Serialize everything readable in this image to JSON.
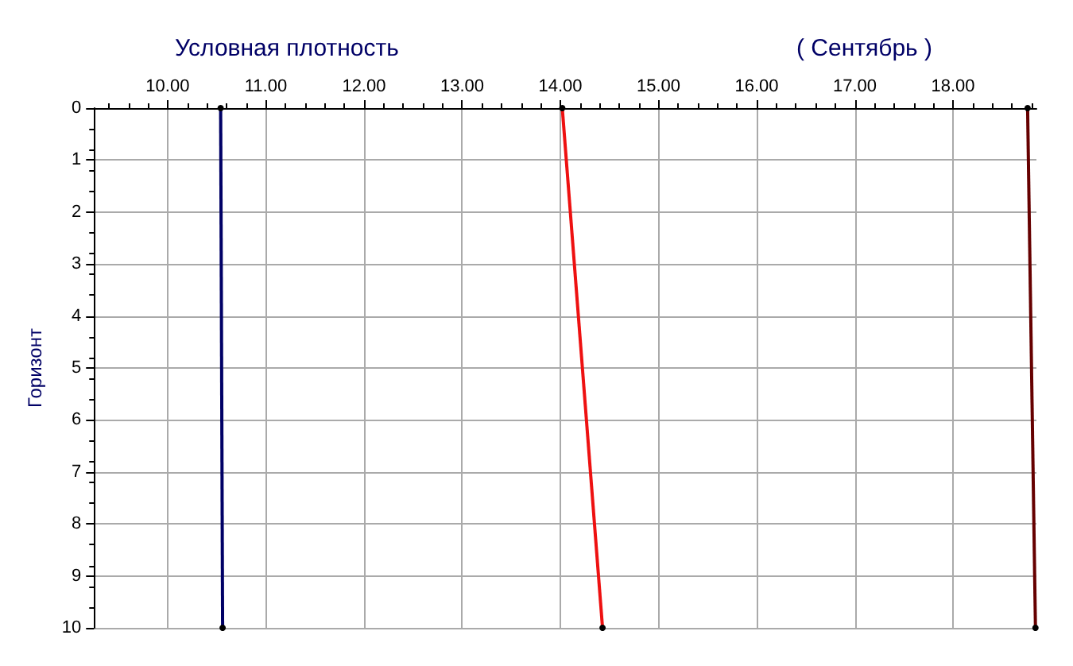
{
  "chart_data": {
    "type": "line",
    "title": "Условная плотность",
    "subtitle": "( Сентябрь )",
    "ylabel": "Горизонт",
    "series": [
      {
        "color": "#000066",
        "x": [
          10.54,
          10.56
        ],
        "values": [
          0,
          10
        ]
      },
      {
        "color": "#ee1111",
        "x": [
          14.02,
          14.43
        ],
        "values": [
          0,
          10
        ]
      },
      {
        "color": "#660000",
        "x": [
          18.76,
          18.84
        ],
        "values": [
          0,
          10
        ]
      }
    ],
    "xlim": [
      9.25,
      18.85
    ],
    "xticks": [
      {
        "value": 10,
        "label": "10.00"
      },
      {
        "value": 11,
        "label": "11.00"
      },
      {
        "value": 12,
        "label": "12.00"
      },
      {
        "value": 13,
        "label": "13.00"
      },
      {
        "value": 14,
        "label": "14.00"
      },
      {
        "value": 15,
        "label": "15.00"
      },
      {
        "value": 16,
        "label": "16.00"
      },
      {
        "value": 17,
        "label": "17.00"
      },
      {
        "value": 18,
        "label": "18.00"
      }
    ],
    "ylim": [
      10,
      0
    ],
    "yticks": [
      0,
      1,
      2,
      3,
      4,
      5,
      6,
      7,
      8,
      9,
      10
    ],
    "grid": true,
    "marker": "circle",
    "line_style": "solid"
  }
}
